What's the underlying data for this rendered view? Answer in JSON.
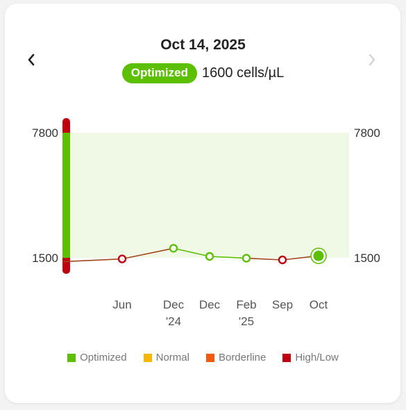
{
  "header": {
    "date": "Oct 14, 2025",
    "status": "Optimized",
    "value": "1600 cells/µL"
  },
  "nav": {
    "prev_icon": "chevron-left-icon",
    "next_icon": "chevron-right-icon",
    "next_enabled": false
  },
  "colors": {
    "optimized": "#5cbf00",
    "normal": "#f5b800",
    "borderline": "#f25a0f",
    "high_low": "#bf0010",
    "band": "#f0f9e6"
  },
  "legend": [
    {
      "label": "Optimized",
      "color": "#5cbf00"
    },
    {
      "label": "Normal",
      "color": "#f5b800"
    },
    {
      "label": "Borderline",
      "color": "#f25a0f"
    },
    {
      "label": "High/Low",
      "color": "#bf0010"
    }
  ],
  "chart_data": {
    "type": "line",
    "y_ticks": [
      "7800",
      "1500"
    ],
    "optimal_range": [
      1500,
      7800
    ],
    "categories": [
      {
        "line1": "Jun",
        "line2": ""
      },
      {
        "line1": "Dec",
        "line2": "'24"
      },
      {
        "line1": "Dec",
        "line2": ""
      },
      {
        "line1": "Feb",
        "line2": "'25"
      },
      {
        "line1": "Sep",
        "line2": ""
      },
      {
        "line1": "Oct",
        "line2": ""
      }
    ],
    "lead_in_value": 1220,
    "values": [
      1420,
      1980,
      1570,
      1470,
      1350,
      1600
    ],
    "point_status": [
      "high_low",
      "optimized",
      "optimized",
      "optimized",
      "high_low",
      "optimized"
    ],
    "selected_index": 5
  }
}
